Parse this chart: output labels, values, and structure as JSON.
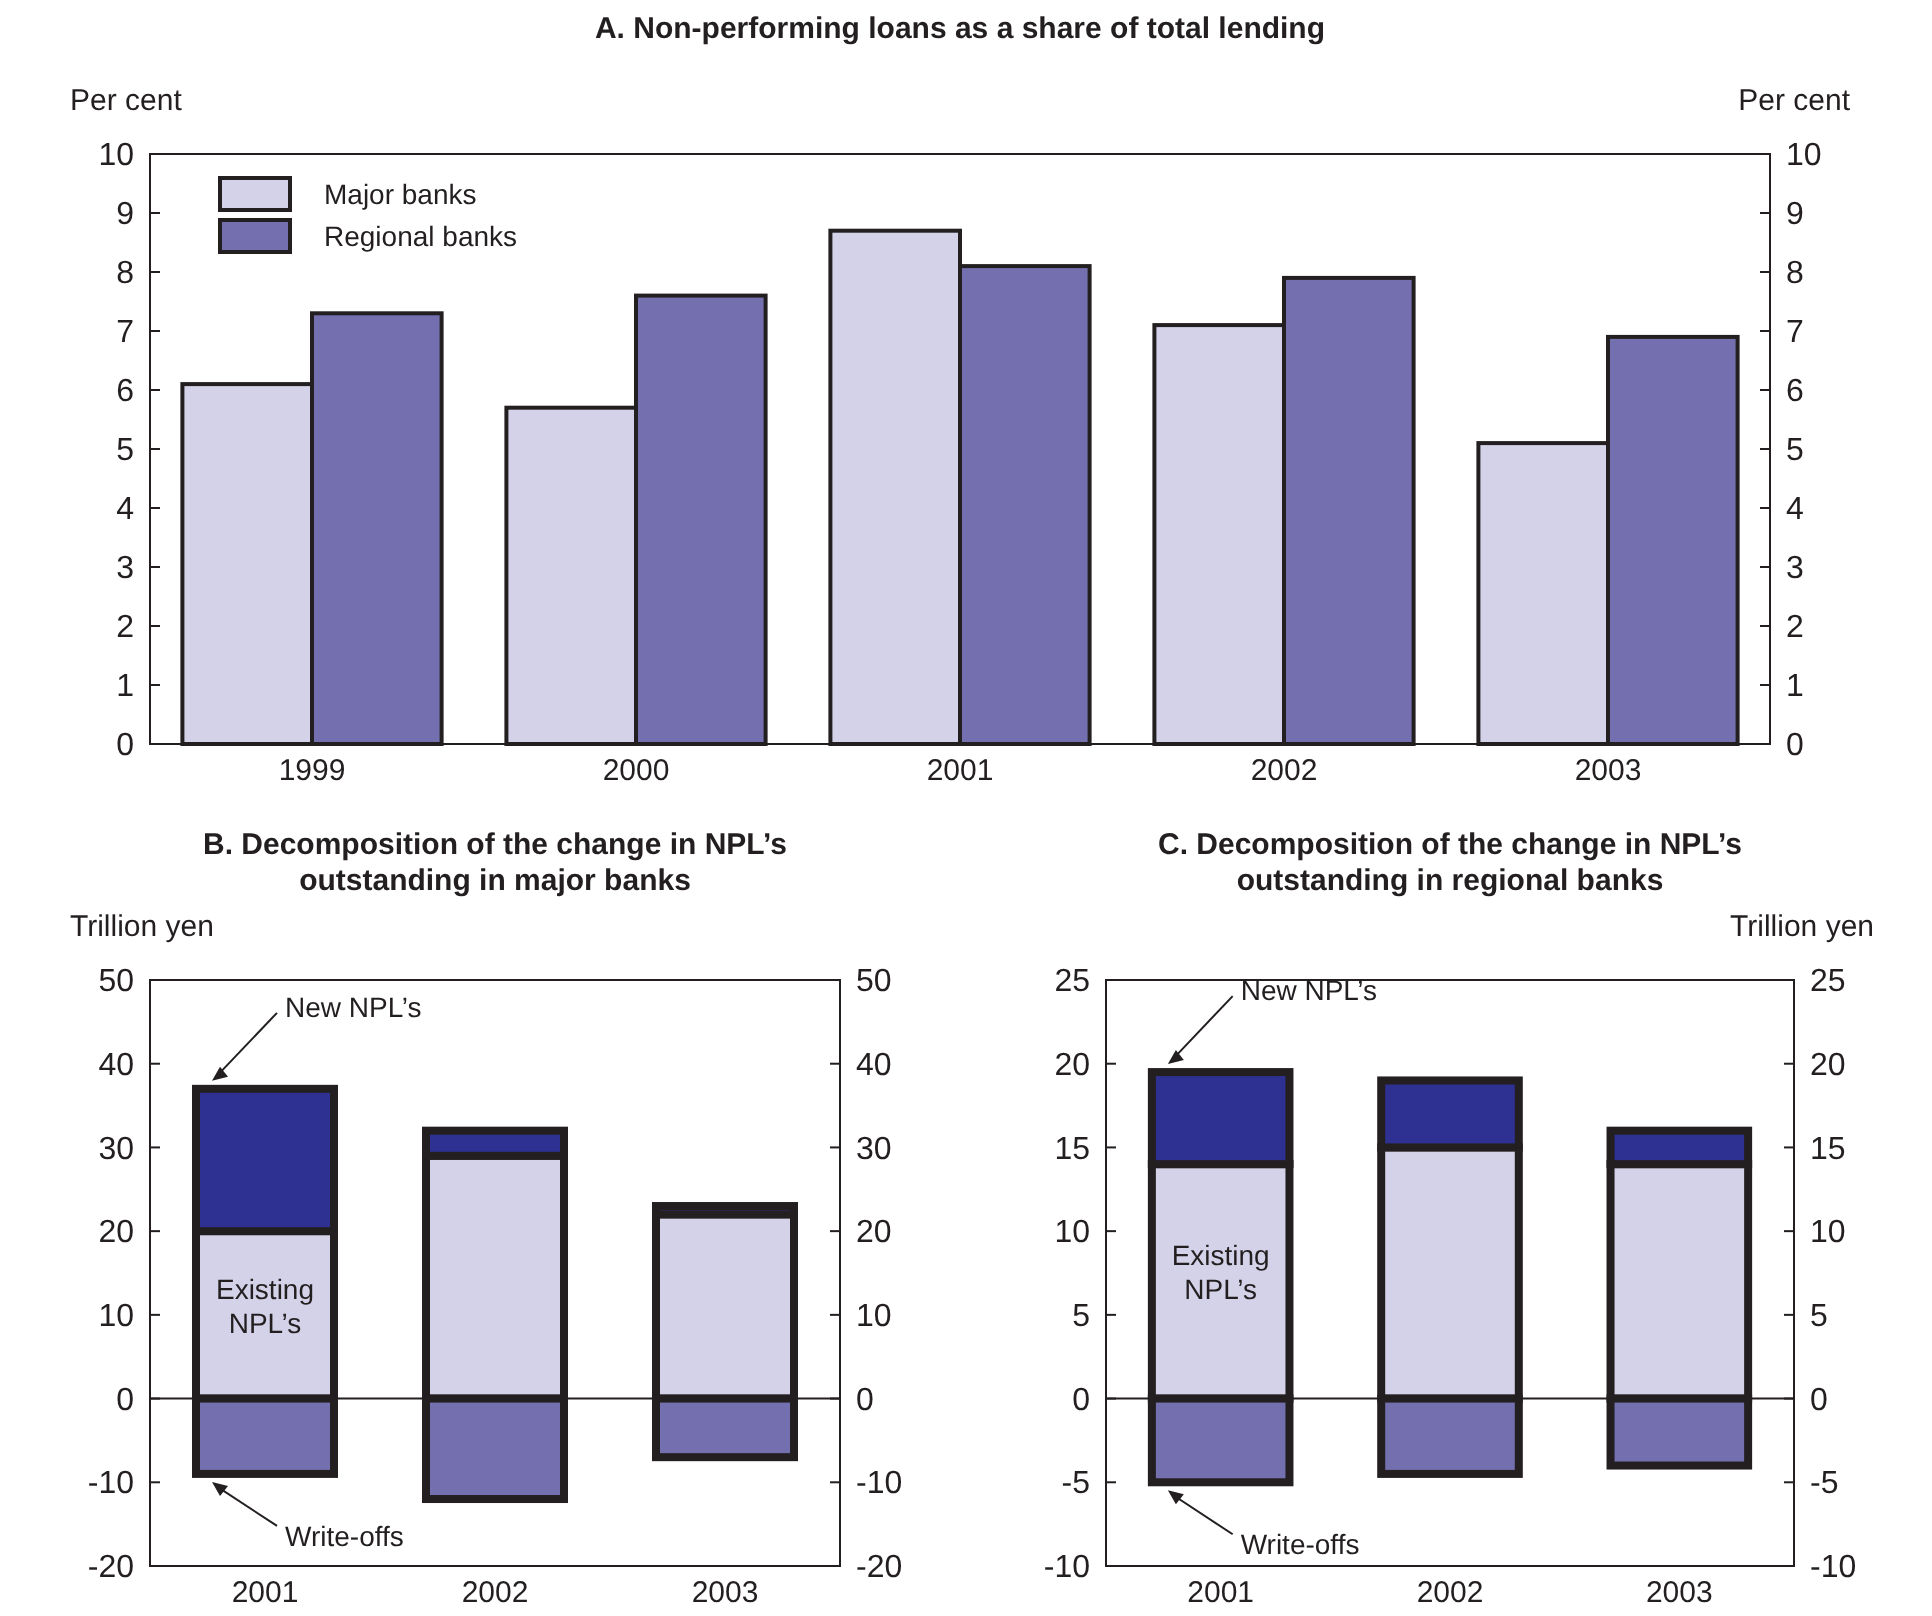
{
  "chart_data": [
    {
      "type": "bar",
      "title": "A.  Non-performing loans as a share of total lending",
      "ylabel": "Per cent",
      "y2label": "Per cent",
      "categories": [
        "1999",
        "2000",
        "2001",
        "2002",
        "2003"
      ],
      "series": [
        {
          "name": "Major banks",
          "color": "#d4d2e8",
          "values": [
            6.1,
            5.7,
            8.7,
            7.1,
            5.1
          ]
        },
        {
          "name": "Regional banks",
          "color": "#7470b0",
          "values": [
            7.3,
            7.6,
            8.1,
            7.9,
            6.9
          ]
        }
      ],
      "ylim": [
        0,
        10
      ],
      "yticks": [
        0,
        1,
        2,
        3,
        4,
        5,
        6,
        7,
        8,
        9,
        10
      ],
      "y2lim": [
        0,
        10
      ],
      "y2ticks": [
        0,
        1,
        2,
        3,
        4,
        5,
        6,
        7,
        8,
        9,
        10
      ],
      "legend": "top left"
    },
    {
      "type": "bar",
      "title": "B.  Decomposition of the change in NPL’s outstanding in major banks",
      "ylabel": "Trillion yen",
      "categories": [
        "2001",
        "2002",
        "2003"
      ],
      "stacked": true,
      "series": [
        {
          "name": "Existing NPL’s",
          "color": "#d4d2e8",
          "values": [
            20,
            29,
            22
          ]
        },
        {
          "name": "New NPL’s",
          "color": "#2e3192",
          "values": [
            17,
            3,
            1
          ]
        },
        {
          "name": "Write-offs",
          "color": "#7470b0",
          "values": [
            -9,
            -12,
            -7
          ]
        }
      ],
      "ylim": [
        -20,
        50
      ],
      "yticks": [
        -20,
        -10,
        0,
        10,
        20,
        30,
        40,
        50
      ],
      "y2lim": [
        -20,
        50
      ],
      "y2ticks": [
        -20,
        -10,
        0,
        10,
        20,
        30,
        40,
        50
      ],
      "legend": false,
      "ref_lines": [
        {
          "axis": "y",
          "value": 0,
          "color": "#231f20"
        }
      ]
    },
    {
      "type": "bar",
      "title": "C.  Decomposition of the change in NPL’s outstanding in regional banks",
      "y2label": "Trillion yen",
      "categories": [
        "2001",
        "2002",
        "2003"
      ],
      "stacked": true,
      "series": [
        {
          "name": "Existing NPL’s",
          "color": "#d4d2e8",
          "values": [
            14,
            15,
            14
          ]
        },
        {
          "name": "New NPL’s",
          "color": "#2e3192",
          "values": [
            5.5,
            4,
            2
          ]
        },
        {
          "name": "Write-offs",
          "color": "#7470b0",
          "values": [
            -5,
            -4.5,
            -4
          ]
        }
      ],
      "ylim": [
        -10,
        25
      ],
      "yticks": [
        -10,
        -5,
        0,
        5,
        10,
        15,
        20,
        25
      ],
      "y2lim": [
        -10,
        25
      ],
      "y2ticks": [
        -10,
        -5,
        0,
        5,
        10,
        15,
        20,
        25
      ],
      "legend": false,
      "ref_lines": [
        {
          "axis": "y",
          "value": 0,
          "color": "#231f20"
        }
      ]
    }
  ]
}
